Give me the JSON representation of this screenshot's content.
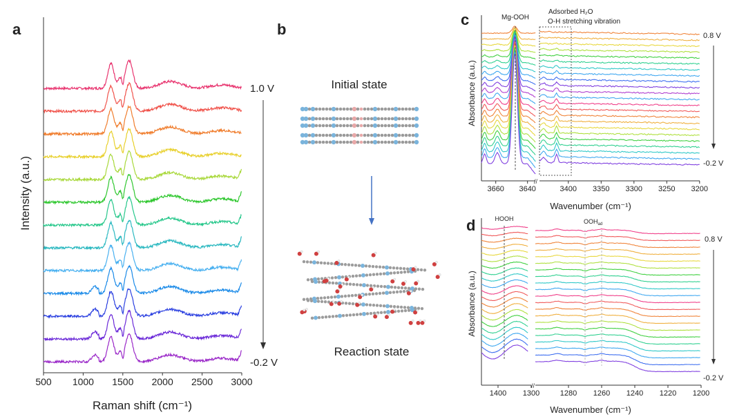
{
  "panels": {
    "a": "a",
    "b": "b",
    "c": "c",
    "d": "d"
  },
  "panel_b": {
    "initial_label": "Initial state",
    "reaction_label": "Reaction state",
    "arrow_color": "#4472c4"
  },
  "chart_data": [
    {
      "panel": "a",
      "type": "line",
      "xlabel": "Raman shift (cm⁻¹)",
      "ylabel": "Intensity (a.u.)",
      "xlim": [
        500,
        3000
      ],
      "xticks": [
        "500",
        "1000",
        "1500",
        "2000",
        "2500",
        "3000"
      ],
      "potential_top": "1.0 V",
      "potential_bottom": "-0.2 V",
      "peaks_cm-1": [
        1350,
        1470,
        1580,
        2100,
        2700
      ],
      "series_count": 13,
      "colors": [
        "#e8336e",
        "#f0524a",
        "#f07d2d",
        "#e8d02c",
        "#a8d83a",
        "#2ec72e",
        "#25c78a",
        "#2ab8c0",
        "#48b0f0",
        "#1a8ae8",
        "#2a3fe0",
        "#6a28d8",
        "#9a28c8"
      ]
    },
    {
      "panel": "c",
      "type": "line",
      "xlabel": "Wavenumber (cm⁻¹)",
      "ylabel": "Absorbance (a.u.)",
      "xlim_left": [
        3669,
        3635
      ],
      "xlim_right": [
        3444,
        3200
      ],
      "xticks": [
        "3660",
        "3640",
        "3400",
        "3350",
        "3300",
        "3250",
        "3200"
      ],
      "annotations": [
        "Mg-OOH",
        "Adsorbed H₂O",
        "O-H stretching vibration"
      ],
      "potential_top": "0.8 V",
      "potential_bottom": "-0.2 V",
      "peaks_cm-1": [
        3648,
        3659,
        3418
      ],
      "series_count": 23
    },
    {
      "panel": "d",
      "type": "line",
      "xlabel": "Wavenumber (cm⁻¹)",
      "ylabel": "Absorbance (a.u.)",
      "xlim_left": [
        1450,
        1300
      ],
      "xlim_right": [
        1300,
        1200
      ],
      "xticks": [
        "1400",
        "1300",
        "1280",
        "1260",
        "1240",
        "1220",
        "1200"
      ],
      "annotations": [
        "HOOH",
        "OOH",
        "ad"
      ],
      "potential_top": "0.8 V",
      "potential_bottom": "-0.2 V",
      "peaks_cm-1": [
        1380,
        1270,
        1260
      ],
      "series_count": 21
    }
  ],
  "rainbow": [
    "#f0408a",
    "#f05a5a",
    "#f0843a",
    "#f0b040",
    "#e8d840",
    "#b0e040",
    "#40d040",
    "#30d090",
    "#30c8c8",
    "#40a8f0",
    "#4070f0",
    "#8040e0",
    "#b040d0"
  ]
}
